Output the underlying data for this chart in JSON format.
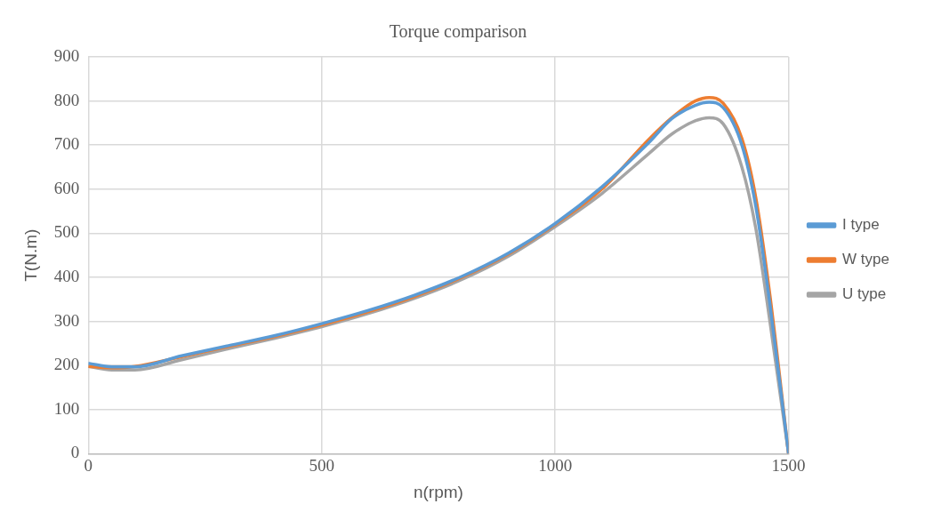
{
  "chart_data": {
    "type": "line",
    "title": "Torque comparison",
    "xlabel": "n(rpm)",
    "ylabel": "T(N.m)",
    "xlim": [
      0,
      1500
    ],
    "xticks": [
      0,
      500,
      1000,
      1500
    ],
    "ylim": [
      0,
      900
    ],
    "yticks": [
      0,
      100,
      200,
      300,
      400,
      500,
      600,
      700,
      800,
      900
    ],
    "grid": true,
    "legend": "right",
    "marker": "none",
    "line_style": "solid",
    "x": [
      0,
      50,
      100,
      200,
      300,
      400,
      500,
      600,
      700,
      800,
      900,
      1000,
      1100,
      1200,
      1250,
      1300,
      1330,
      1360,
      1400,
      1430,
      1460,
      1500
    ],
    "series": [
      {
        "name": "I type",
        "color": "#5b9bd5",
        "values": [
          205,
          197,
          197,
          222,
          245,
          268,
          295,
          325,
          360,
          402,
          455,
          522,
          605,
          705,
          760,
          790,
          797,
          785,
          700,
          560,
          340,
          0
        ]
      },
      {
        "name": "W type",
        "color": "#ed7d31",
        "values": [
          198,
          195,
          198,
          220,
          243,
          266,
          292,
          322,
          357,
          400,
          453,
          520,
          600,
          712,
          762,
          800,
          808,
          795,
          715,
          580,
          360,
          0
        ]
      },
      {
        "name": "U type",
        "color": "#a5a5a5",
        "values": [
          198,
          190,
          190,
          213,
          238,
          262,
          288,
          318,
          353,
          395,
          448,
          515,
          590,
          680,
          725,
          755,
          762,
          748,
          650,
          510,
          300,
          0
        ]
      }
    ]
  }
}
